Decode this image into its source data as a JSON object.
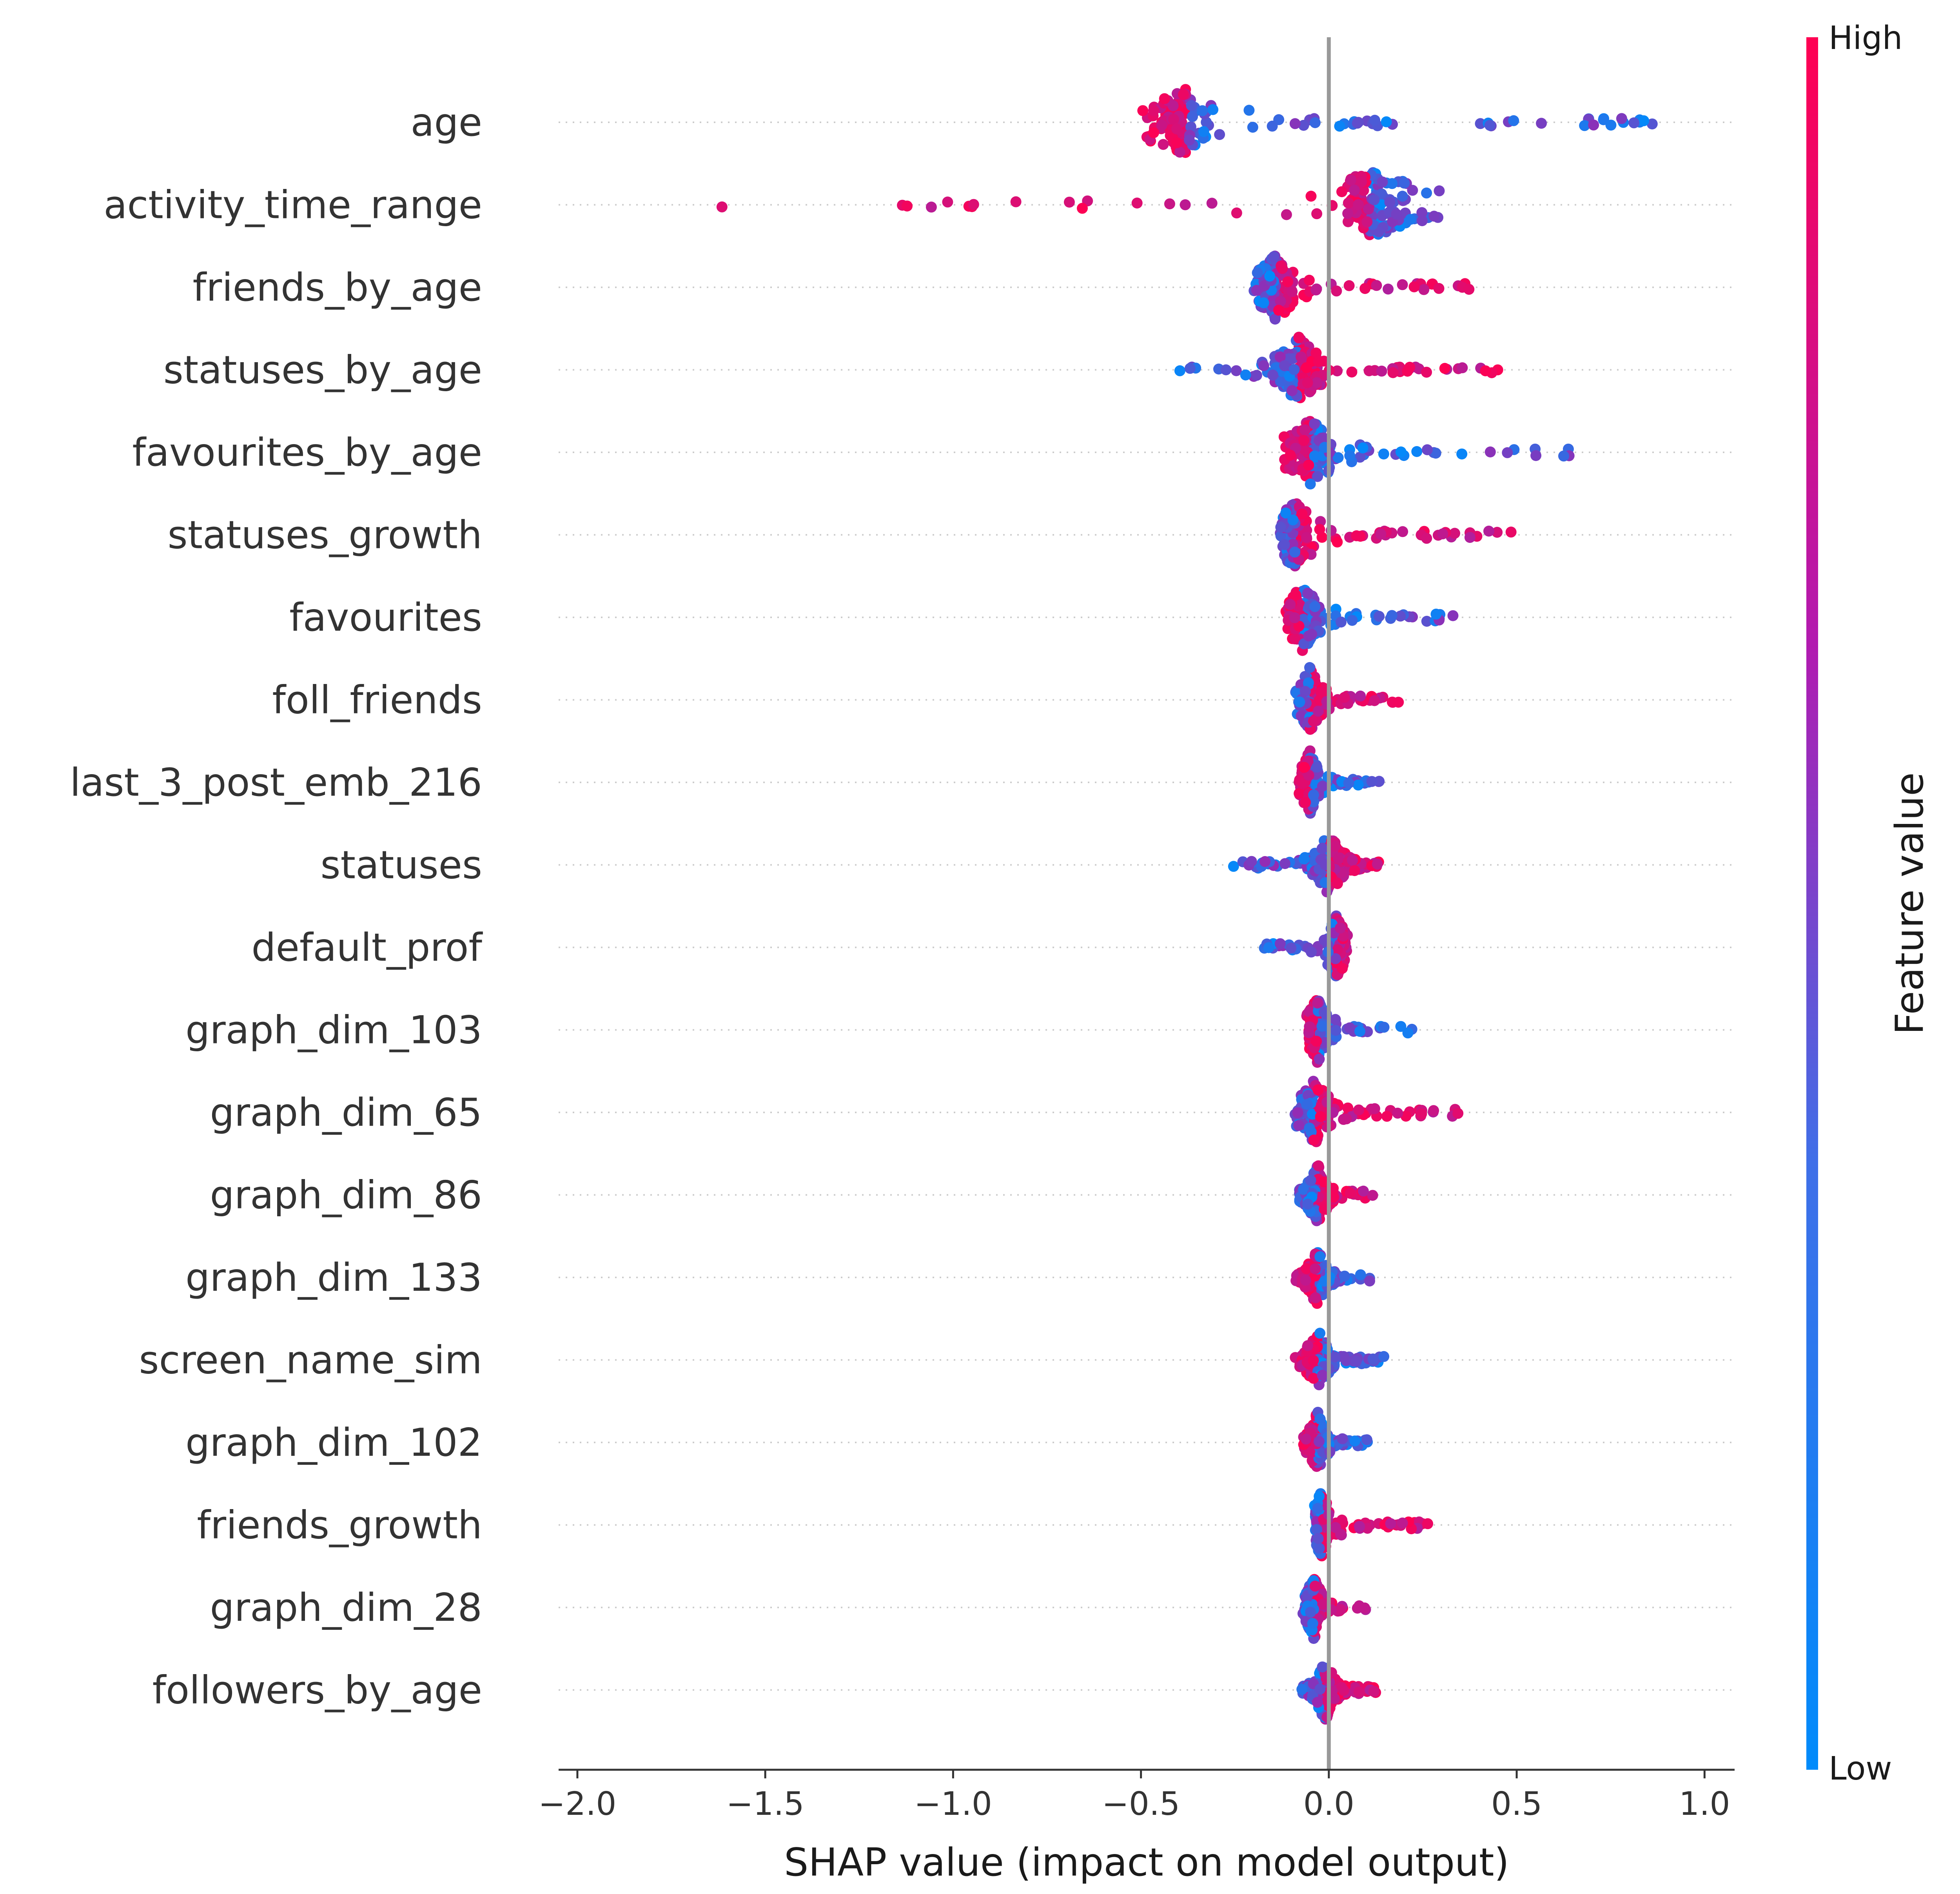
{
  "chart_data": {
    "type": "scatter",
    "subtype": "shap-beeswarm",
    "xlabel": "SHAP value (impact on model output)",
    "xlim": [
      -2.05,
      1.08
    ],
    "xticks": [
      -2.0,
      -1.5,
      -1.0,
      -0.5,
      0.0,
      0.5,
      1.0
    ],
    "xtick_labels": [
      "−2.0",
      "−1.5",
      "−1.0",
      "−0.5",
      "0.0",
      "0.5",
      "1.0"
    ],
    "colorbar": {
      "label": "Feature value",
      "high_label": "High",
      "low_label": "Low"
    },
    "colors": {
      "high": "#ff0052",
      "low": "#008bfb",
      "mid": "#9b27b0",
      "zero_line": "#999999",
      "axis": "#333333",
      "row_grid": "#cccccc"
    },
    "features": [
      {
        "name": "age",
        "min": -0.5,
        "max": 0.94,
        "median": -0.38,
        "high_side": "negative"
      },
      {
        "name": "activity_time_range",
        "min": -1.92,
        "max": 0.3,
        "median": 0.11,
        "high_side": "negative"
      },
      {
        "name": "friends_by_age",
        "min": -0.2,
        "max": 0.43,
        "median": -0.14,
        "high_side": "positive"
      },
      {
        "name": "statuses_by_age",
        "min": -0.4,
        "max": 0.47,
        "median": -0.08,
        "high_side": "positive"
      },
      {
        "name": "favourites_by_age",
        "min": -0.12,
        "max": 0.66,
        "median": -0.05,
        "high_side": "negative"
      },
      {
        "name": "statuses_growth",
        "min": -0.13,
        "max": 0.55,
        "median": -0.09,
        "high_side": "positive"
      },
      {
        "name": "favourites",
        "min": -0.12,
        "max": 0.38,
        "median": -0.07,
        "high_side": "negative"
      },
      {
        "name": "foll_friends",
        "min": -0.09,
        "max": 0.2,
        "median": -0.05,
        "high_side": "positive"
      },
      {
        "name": "last_3_post_emb_216",
        "min": -0.08,
        "max": 0.15,
        "median": -0.05,
        "high_side": "negative"
      },
      {
        "name": "statuses",
        "min": -0.27,
        "max": 0.14,
        "median": 0.0,
        "high_side": "positive"
      },
      {
        "name": "default_prof",
        "min": -0.19,
        "max": 0.05,
        "median": 0.02,
        "high_side": "positive"
      },
      {
        "name": "graph_dim_103",
        "min": -0.06,
        "max": 0.23,
        "median": -0.03,
        "high_side": "negative"
      },
      {
        "name": "graph_dim_65",
        "min": -0.09,
        "max": 0.35,
        "median": -0.04,
        "high_side": "positive"
      },
      {
        "name": "graph_dim_86",
        "min": -0.09,
        "max": 0.13,
        "median": -0.03,
        "high_side": "positive"
      },
      {
        "name": "graph_dim_133",
        "min": -0.09,
        "max": 0.11,
        "median": -0.03,
        "high_side": "negative"
      },
      {
        "name": "screen_name_sim",
        "min": -0.09,
        "max": 0.15,
        "median": -0.03,
        "high_side": "negative"
      },
      {
        "name": "graph_dim_102",
        "min": -0.07,
        "max": 0.11,
        "median": -0.03,
        "high_side": "negative"
      },
      {
        "name": "friends_growth",
        "min": -0.04,
        "max": 0.27,
        "median": -0.02,
        "high_side": "positive"
      },
      {
        "name": "graph_dim_28",
        "min": -0.07,
        "max": 0.1,
        "median": -0.04,
        "high_side": "positive"
      },
      {
        "name": "followers_by_age",
        "min": -0.08,
        "max": 0.13,
        "median": -0.01,
        "high_side": "positive"
      }
    ]
  }
}
